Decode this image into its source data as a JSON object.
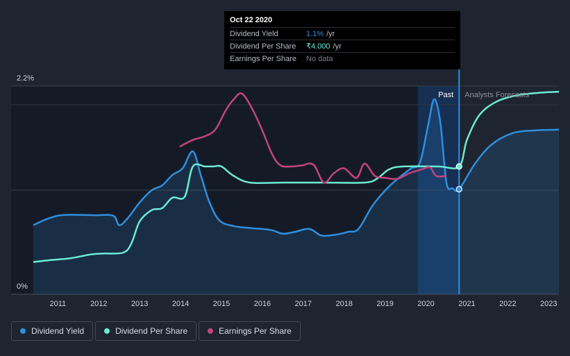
{
  "chart_data": {
    "type": "line",
    "y_tick_labels": [
      "2.2%",
      "0%"
    ],
    "ylim": [
      0,
      2.2
    ],
    "x_tick_labels": [
      "2011",
      "2012",
      "2013",
      "2014",
      "2015",
      "2016",
      "2017",
      "2018",
      "2019",
      "2020",
      "2021",
      "2022",
      "2023"
    ],
    "x_range": [
      2010.4,
      2023.25
    ],
    "past_label": "Past",
    "forecast_label": "Analysts Forecasts",
    "forecast_start": 2020.81,
    "grid": true,
    "legend_position": "bottom-left",
    "series": [
      {
        "name": "Dividend Yield",
        "color": "#2f8fe0",
        "fill": true,
        "points": [
          [
            2010.4,
            0.73
          ],
          [
            2010.7,
            0.79
          ],
          [
            2011.0,
            0.83
          ],
          [
            2011.3,
            0.84
          ],
          [
            2011.9,
            0.835
          ],
          [
            2012.35,
            0.83
          ],
          [
            2012.5,
            0.73
          ],
          [
            2012.7,
            0.8
          ],
          [
            2013.0,
            0.97
          ],
          [
            2013.3,
            1.1
          ],
          [
            2013.55,
            1.15
          ],
          [
            2013.8,
            1.26
          ],
          [
            2014.05,
            1.33
          ],
          [
            2014.3,
            1.51
          ],
          [
            2014.5,
            1.25
          ],
          [
            2014.7,
            0.98
          ],
          [
            2014.95,
            0.78
          ],
          [
            2015.3,
            0.72
          ],
          [
            2015.7,
            0.7
          ],
          [
            2016.2,
            0.68
          ],
          [
            2016.5,
            0.64
          ],
          [
            2016.8,
            0.66
          ],
          [
            2017.15,
            0.69
          ],
          [
            2017.45,
            0.62
          ],
          [
            2017.8,
            0.63
          ],
          [
            2018.1,
            0.66
          ],
          [
            2018.35,
            0.69
          ],
          [
            2018.7,
            0.94
          ],
          [
            2019.1,
            1.14
          ],
          [
            2019.6,
            1.32
          ],
          [
            2019.85,
            1.39
          ],
          [
            2020.05,
            1.78
          ],
          [
            2020.2,
            2.06
          ],
          [
            2020.35,
            1.82
          ],
          [
            2020.5,
            1.18
          ],
          [
            2020.65,
            1.12
          ],
          [
            2020.81,
            1.11
          ],
          [
            2021.2,
            1.38
          ],
          [
            2021.6,
            1.58
          ],
          [
            2022.1,
            1.7
          ],
          [
            2022.6,
            1.73
          ],
          [
            2023.25,
            1.74
          ]
        ]
      },
      {
        "name": "Dividend Per Share",
        "color": "#6cebd4",
        "fill": false,
        "points": [
          [
            2010.4,
            0.34
          ],
          [
            2010.8,
            0.36
          ],
          [
            2011.3,
            0.38
          ],
          [
            2011.8,
            0.42
          ],
          [
            2012.1,
            0.43
          ],
          [
            2012.6,
            0.44
          ],
          [
            2012.8,
            0.54
          ],
          [
            2013.0,
            0.77
          ],
          [
            2013.3,
            0.89
          ],
          [
            2013.55,
            0.91
          ],
          [
            2013.8,
            1.02
          ],
          [
            2014.1,
            1.03
          ],
          [
            2014.3,
            1.35
          ],
          [
            2014.6,
            1.35
          ],
          [
            2014.8,
            1.35
          ],
          [
            2015.0,
            1.35
          ],
          [
            2015.3,
            1.25
          ],
          [
            2015.7,
            1.18
          ],
          [
            2016.5,
            1.18
          ],
          [
            2017.5,
            1.18
          ],
          [
            2018.5,
            1.18
          ],
          [
            2018.8,
            1.22
          ],
          [
            2019.1,
            1.32
          ],
          [
            2019.45,
            1.35
          ],
          [
            2020.3,
            1.35
          ],
          [
            2020.81,
            1.35
          ],
          [
            2021.0,
            1.63
          ],
          [
            2021.3,
            1.89
          ],
          [
            2021.7,
            2.03
          ],
          [
            2022.2,
            2.1
          ],
          [
            2022.8,
            2.13
          ],
          [
            2023.25,
            2.14
          ]
        ]
      },
      {
        "name": "Earnings Per Share",
        "color": "#c4447f",
        "fill": false,
        "points": [
          [
            2013.98,
            1.56
          ],
          [
            2014.3,
            1.63
          ],
          [
            2014.6,
            1.67
          ],
          [
            2014.85,
            1.74
          ],
          [
            2015.1,
            1.94
          ],
          [
            2015.3,
            2.06
          ],
          [
            2015.5,
            2.12
          ],
          [
            2015.75,
            1.96
          ],
          [
            2016.0,
            1.73
          ],
          [
            2016.25,
            1.47
          ],
          [
            2016.45,
            1.36
          ],
          [
            2016.7,
            1.35
          ],
          [
            2016.95,
            1.36
          ],
          [
            2017.25,
            1.37
          ],
          [
            2017.5,
            1.18
          ],
          [
            2017.75,
            1.28
          ],
          [
            2018.0,
            1.33
          ],
          [
            2018.3,
            1.23
          ],
          [
            2018.5,
            1.38
          ],
          [
            2018.75,
            1.25
          ],
          [
            2019.0,
            1.23
          ],
          [
            2019.3,
            1.22
          ],
          [
            2019.6,
            1.28
          ],
          [
            2019.9,
            1.32
          ],
          [
            2020.1,
            1.34
          ],
          [
            2020.25,
            1.25
          ],
          [
            2020.5,
            1.25
          ]
        ]
      }
    ],
    "highlight_points": [
      {
        "series": "Dividend Yield",
        "x": 2020.81,
        "y": 1.11
      },
      {
        "series": "Dividend Per Share",
        "x": 2020.81,
        "y": 1.35
      }
    ]
  },
  "tooltip": {
    "date": "Oct 22 2020",
    "rows": [
      {
        "label": "Dividend Yield",
        "value": "1.1%",
        "unit": "/yr",
        "color": "#2f8fe0"
      },
      {
        "label": "Dividend Per Share",
        "value": "₹4.000",
        "unit": "/yr",
        "color": "#6cebd4"
      },
      {
        "label": "Earnings Per Share",
        "value": "No data",
        "unit": "",
        "color": "#7a7f88"
      }
    ]
  },
  "legend": [
    {
      "label": "Dividend Yield",
      "color": "#2f8fe0"
    },
    {
      "label": "Dividend Per Share",
      "color": "#6cebd4"
    },
    {
      "label": "Earnings Per Share",
      "color": "#c4447f"
    }
  ]
}
